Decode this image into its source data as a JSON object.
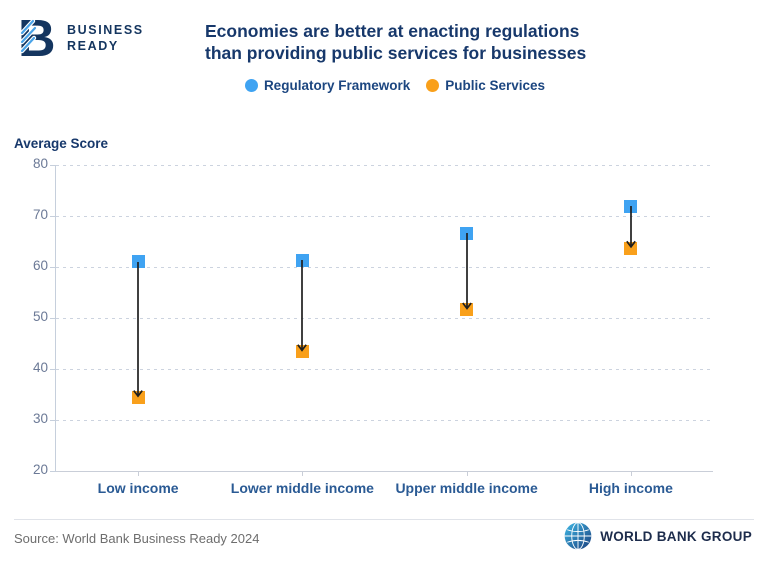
{
  "header": {
    "brand_line1": "BUSINESS",
    "brand_line2": "READY",
    "title_line1": "Economies are better at enacting regulations",
    "title_line2": "than providing public services for businesses"
  },
  "legend": [
    {
      "label": "Regulatory Framework",
      "color": "#3fa3f2"
    },
    {
      "label": "Public Services",
      "color": "#f9a01b"
    }
  ],
  "chart_data": {
    "type": "scatter",
    "subtype": "dumbbell-arrow",
    "title": "Economies are better at enacting regulations than providing public services for businesses",
    "categories": [
      "Low income",
      "Lower middle income",
      "Upper middle income",
      "High income"
    ],
    "series": [
      {
        "name": "Regulatory Framework",
        "color": "#3fa3f2",
        "values": [
          61.0,
          61.3,
          66.6,
          71.9
        ]
      },
      {
        "name": "Public Services",
        "color": "#f9a01b",
        "values": [
          34.5,
          43.4,
          51.6,
          63.7
        ]
      }
    ],
    "xlabel": "",
    "ylabel": "Average Score",
    "ylim": [
      20,
      80
    ],
    "yticks": [
      20,
      30,
      40,
      50,
      60,
      70,
      80
    ],
    "grid": "horizontal-dashed",
    "legend_position": "top",
    "arrow_color": "#1f1f1f",
    "annotation": "arrows point from Regulatory Framework down to Public Services"
  },
  "footer": {
    "source": "Source: World Bank Business Ready 2024",
    "logo_text": "WORLD BANK GROUP"
  },
  "colors": {
    "brand_navy": "#14355f",
    "title_navy": "#17386b",
    "category_blue": "#2a5a94",
    "tick_gray_blue": "#6b7996",
    "accent_blue": "#3fa3f2",
    "accent_orange": "#f9a01b"
  }
}
